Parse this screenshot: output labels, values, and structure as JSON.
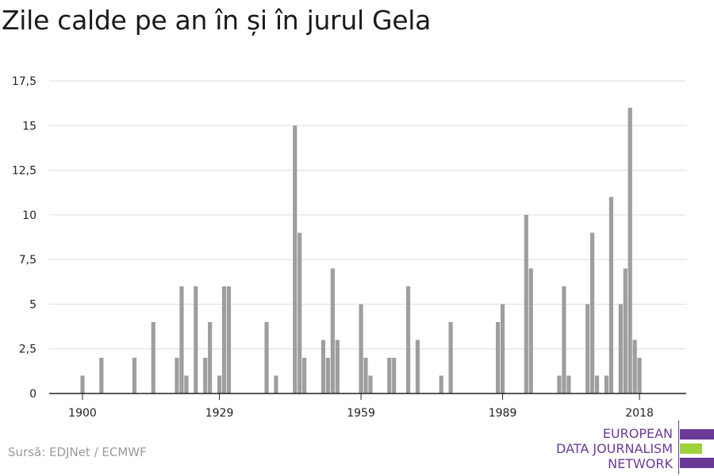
{
  "title": "Zile calde pe an în și în jurul Gela",
  "source": "Sursă: EDJNet / ECMWF",
  "logo": {
    "lines": [
      "EUROPEAN",
      "DATA JOURNALISM",
      "NETWORK"
    ],
    "colors": {
      "purple": "#6a3a96",
      "green": "#9ed13a"
    }
  },
  "colors": {
    "bar": "#9e9e9e",
    "grid": "#dddddd",
    "axis": "#222222",
    "text": "#222222"
  },
  "chart_data": {
    "type": "bar",
    "title": "Zile calde pe an în și în jurul Gela",
    "xlabel": "",
    "ylabel": "",
    "xlim": [
      1900,
      2018
    ],
    "ylim": [
      0,
      17.5
    ],
    "yticks": [
      0,
      2.5,
      5,
      7.5,
      10,
      12.5,
      15,
      17.5
    ],
    "ytick_labels": [
      "0",
      "2,5",
      "5",
      "7,5",
      "10",
      "12,5",
      "15",
      "17,5"
    ],
    "xticks": [
      1900,
      1929,
      1959,
      1989,
      2018
    ],
    "xtick_labels": [
      "1900",
      "1929",
      "1959",
      "1989",
      "2018"
    ],
    "grid": true,
    "series": [
      {
        "x": [
          1900,
          1901,
          1902,
          1903,
          1904,
          1905,
          1906,
          1907,
          1908,
          1909,
          1910,
          1911,
          1912,
          1913,
          1914,
          1915,
          1916,
          1917,
          1918,
          1919,
          1920,
          1921,
          1922,
          1923,
          1924,
          1925,
          1926,
          1927,
          1928,
          1929,
          1930,
          1931,
          1932,
          1933,
          1934,
          1935,
          1936,
          1937,
          1938,
          1939,
          1940,
          1941,
          1942,
          1943,
          1944,
          1945,
          1946,
          1947,
          1948,
          1949,
          1950,
          1951,
          1952,
          1953,
          1954,
          1955,
          1956,
          1957,
          1958,
          1959,
          1960,
          1961,
          1962,
          1963,
          1964,
          1965,
          1966,
          1967,
          1968,
          1969,
          1970,
          1971,
          1972,
          1973,
          1974,
          1975,
          1976,
          1977,
          1978,
          1979,
          1980,
          1981,
          1982,
          1983,
          1984,
          1985,
          1986,
          1987,
          1988,
          1989,
          1990,
          1991,
          1992,
          1993,
          1994,
          1995,
          1996,
          1997,
          1998,
          1999,
          2000,
          2001,
          2002,
          2003,
          2004,
          2005,
          2006,
          2007,
          2008,
          2009,
          2010,
          2011,
          2012,
          2013,
          2014,
          2015,
          2016,
          2017,
          2018
        ],
        "values": [
          1,
          0,
          0,
          0,
          2,
          0,
          0,
          0,
          0,
          0,
          0,
          2,
          0,
          0,
          0,
          4,
          0,
          0,
          0,
          0,
          2,
          6,
          1,
          0,
          6,
          0,
          2,
          4,
          0,
          1,
          6,
          6,
          0,
          0,
          0,
          0,
          0,
          0,
          0,
          4,
          0,
          1,
          0,
          0,
          0,
          15,
          9,
          2,
          0,
          0,
          0,
          3,
          2,
          7,
          3,
          0,
          0,
          0,
          0,
          5,
          2,
          1,
          0,
          0,
          0,
          2,
          2,
          0,
          0,
          6,
          0,
          3,
          0,
          0,
          0,
          0,
          1,
          0,
          4,
          0,
          0,
          0,
          0,
          0,
          0,
          0,
          0,
          0,
          4,
          5,
          0,
          0,
          0,
          0,
          10,
          7,
          0,
          0,
          0,
          0,
          0,
          1,
          6,
          1,
          0,
          0,
          0,
          5,
          9,
          1,
          0,
          1,
          11,
          0,
          5,
          7,
          16,
          3,
          2
        ]
      }
    ]
  }
}
